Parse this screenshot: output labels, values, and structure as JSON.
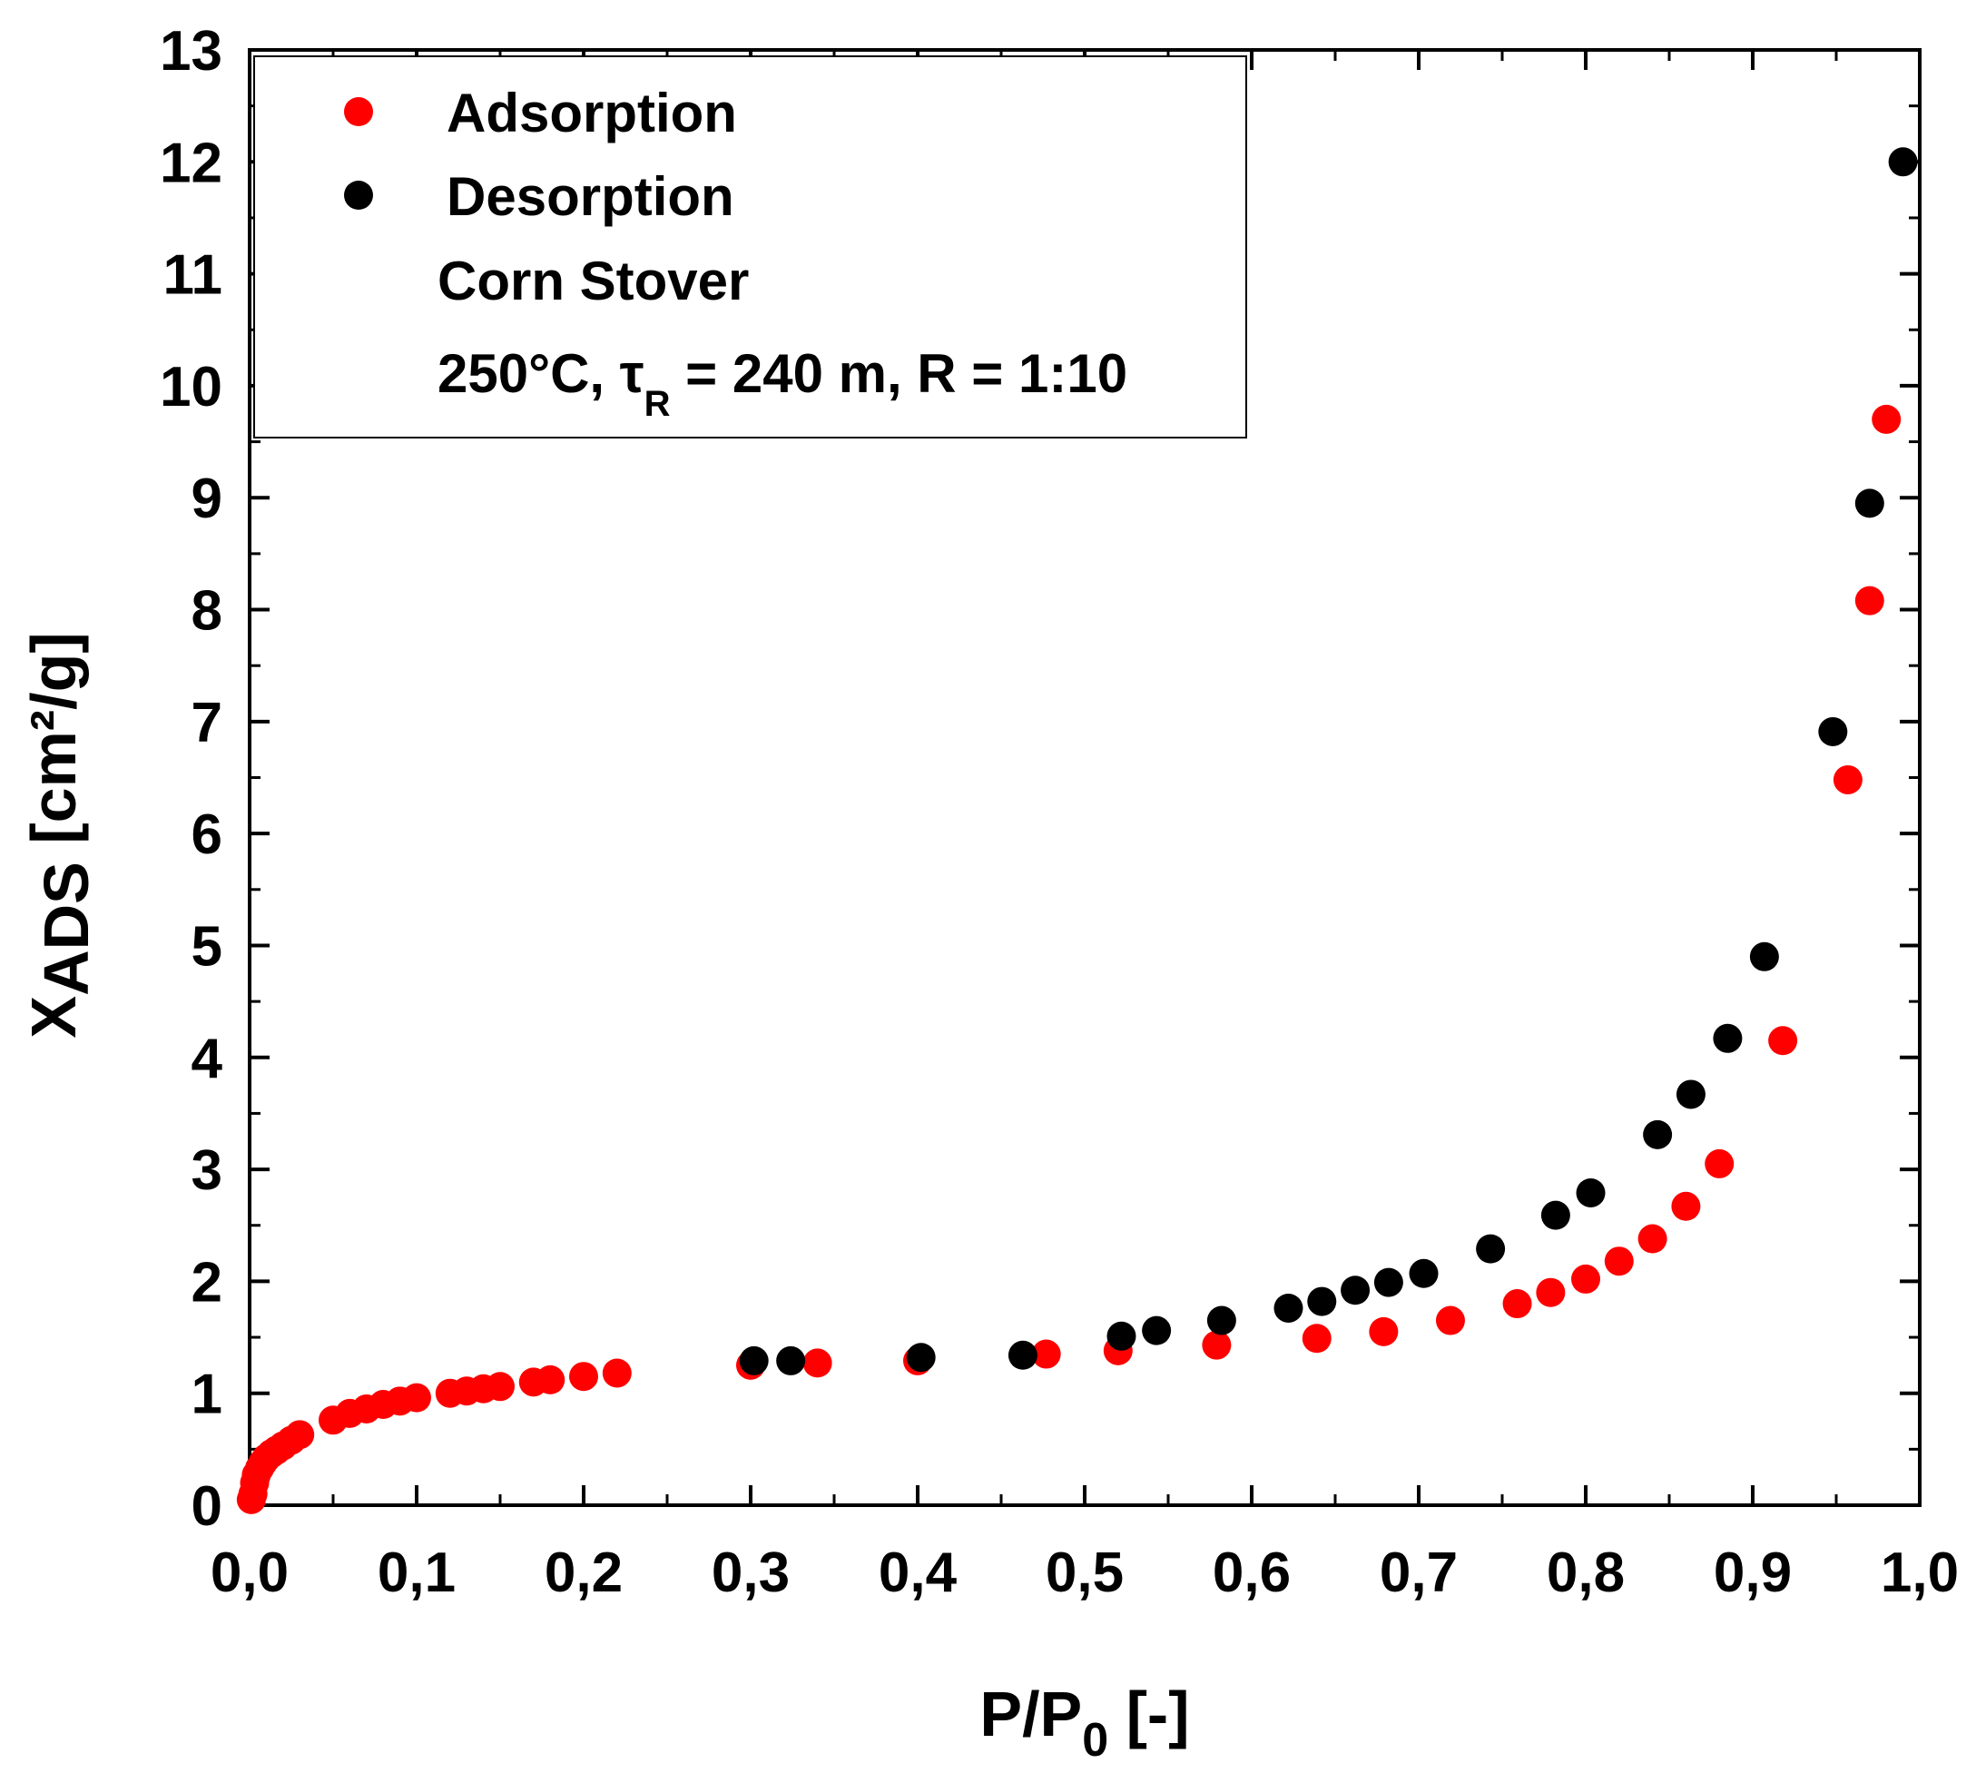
{
  "chart_data": {
    "type": "scatter",
    "title": "",
    "xlabel_main": "P/P",
    "xlabel_sub": "0",
    "xlabel_tail": " [-]",
    "ylabel_main": "X",
    "ylabel_sub": "ADS",
    "ylabel_tail": " [cm²/g]",
    "xlim": [
      0.0,
      1.0
    ],
    "ylim": [
      0,
      13
    ],
    "x_ticks": [
      0.0,
      0.1,
      0.2,
      0.3,
      0.4,
      0.5,
      0.6,
      0.7,
      0.8,
      0.9,
      1.0
    ],
    "x_tick_labels": [
      "0,0",
      "0,1",
      "0,2",
      "0,3",
      "0,4",
      "0,5",
      "0,6",
      "0,7",
      "0,8",
      "0,9",
      "1,0"
    ],
    "y_ticks": [
      0,
      1,
      2,
      3,
      4,
      5,
      6,
      7,
      8,
      9,
      10,
      11,
      12,
      13
    ],
    "y_tick_labels": [
      "0",
      "1",
      "2",
      "3",
      "4",
      "5",
      "6",
      "7",
      "8",
      "9",
      "10",
      "11",
      "12",
      "13"
    ],
    "grid": false,
    "legend_position": "top-left",
    "annotations": {
      "line1": "Corn Stover",
      "line2_a": "250°C, τ",
      "line2_sub": "R",
      "line2_b": " = 240 m,  R = 1:10"
    },
    "series": [
      {
        "name": "Adsorption",
        "color": "#ff0000",
        "points": [
          [
            0.001,
            0.05
          ],
          [
            0.002,
            0.1
          ],
          [
            0.003,
            0.2
          ],
          [
            0.004,
            0.27
          ],
          [
            0.006,
            0.33
          ],
          [
            0.008,
            0.38
          ],
          [
            0.01,
            0.42
          ],
          [
            0.013,
            0.46
          ],
          [
            0.016,
            0.49
          ],
          [
            0.02,
            0.53
          ],
          [
            0.025,
            0.58
          ],
          [
            0.03,
            0.63
          ],
          [
            0.05,
            0.76
          ],
          [
            0.06,
            0.82
          ],
          [
            0.07,
            0.86
          ],
          [
            0.08,
            0.9
          ],
          [
            0.09,
            0.93
          ],
          [
            0.1,
            0.96
          ],
          [
            0.12,
            1.0
          ],
          [
            0.13,
            1.02
          ],
          [
            0.14,
            1.04
          ],
          [
            0.15,
            1.06
          ],
          [
            0.17,
            1.1
          ],
          [
            0.18,
            1.12
          ],
          [
            0.2,
            1.15
          ],
          [
            0.22,
            1.18
          ],
          [
            0.3,
            1.25
          ],
          [
            0.34,
            1.27
          ],
          [
            0.4,
            1.29
          ],
          [
            0.477,
            1.35
          ],
          [
            0.52,
            1.38
          ],
          [
            0.579,
            1.43
          ],
          [
            0.639,
            1.49
          ],
          [
            0.679,
            1.55
          ],
          [
            0.719,
            1.65
          ],
          [
            0.759,
            1.8
          ],
          [
            0.779,
            1.9
          ],
          [
            0.8,
            2.02
          ],
          [
            0.82,
            2.18
          ],
          [
            0.84,
            2.38
          ],
          [
            0.86,
            2.67
          ],
          [
            0.88,
            3.05
          ],
          [
            0.918,
            4.15
          ],
          [
            0.957,
            6.48
          ],
          [
            0.97,
            8.08
          ],
          [
            0.98,
            9.7
          ]
        ]
      },
      {
        "name": "Desorption",
        "color": "#000000",
        "points": [
          [
            0.302,
            1.29
          ],
          [
            0.324,
            1.29
          ],
          [
            0.402,
            1.32
          ],
          [
            0.463,
            1.34
          ],
          [
            0.522,
            1.51
          ],
          [
            0.543,
            1.56
          ],
          [
            0.582,
            1.65
          ],
          [
            0.622,
            1.76
          ],
          [
            0.642,
            1.82
          ],
          [
            0.662,
            1.92
          ],
          [
            0.682,
            1.99
          ],
          [
            0.703,
            2.07
          ],
          [
            0.743,
            2.29
          ],
          [
            0.782,
            2.59
          ],
          [
            0.803,
            2.79
          ],
          [
            0.843,
            3.31
          ],
          [
            0.863,
            3.67
          ],
          [
            0.885,
            4.17
          ],
          [
            0.907,
            4.9
          ],
          [
            0.948,
            6.91
          ],
          [
            0.97,
            8.95
          ],
          [
            0.99,
            12.0
          ]
        ]
      }
    ]
  }
}
